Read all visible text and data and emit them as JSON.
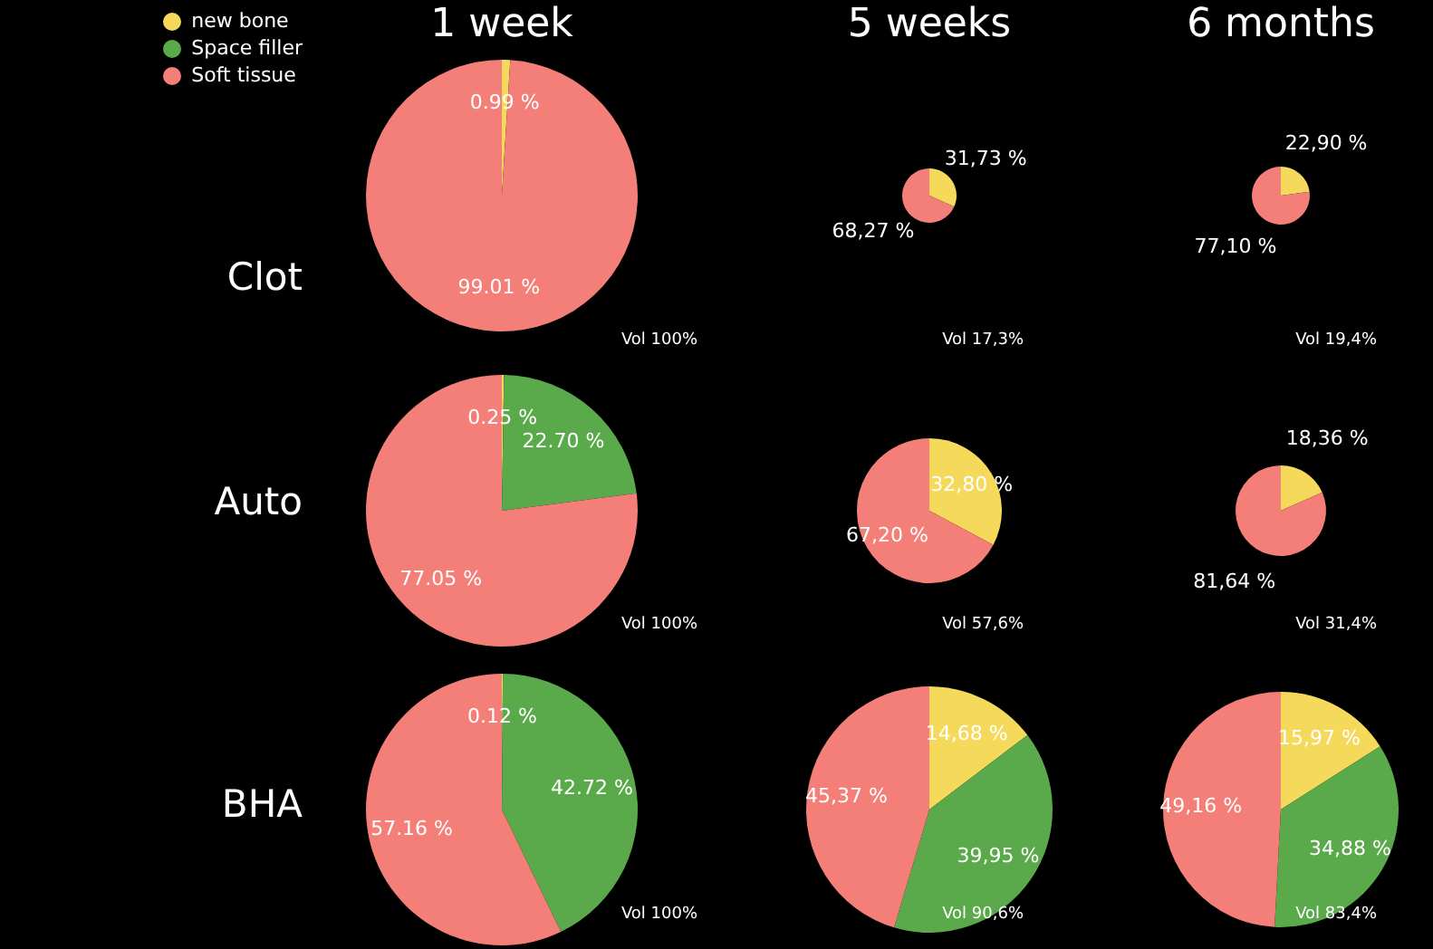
{
  "chart_data": [
    {
      "type": "pie",
      "title": "1 week",
      "ylabel": "Clot",
      "categories": [
        "new bone",
        "Space filler",
        "Soft tissue"
      ],
      "values": [
        0.99,
        0,
        99.01
      ],
      "colors": [
        "#f5d95a",
        "#5aaa4c",
        "#f47f79"
      ],
      "value_labels": [
        "0.99 %",
        null,
        "99.01 %"
      ],
      "legend": "top left",
      "annotations": [
        "Vol 100%"
      ]
    },
    {
      "type": "pie",
      "title": "5 weeks",
      "categories": [
        null,
        null
      ],
      "values": [
        31.73,
        68.27
      ],
      "colors": [
        "#f5d95a",
        "#f47f79"
      ],
      "value_labels": [
        "31,73 %",
        "68,27 %"
      ],
      "annotations": [
        "Vol 17,3%"
      ]
    },
    {
      "type": "pie",
      "title": "6 months",
      "categories": [
        null,
        null
      ],
      "values": [
        22.9,
        77.1
      ],
      "colors": [
        "#f5d95a",
        "#f47f79"
      ],
      "value_labels": [
        "22,90 %",
        "77,10 %"
      ],
      "annotations": [
        "Vol 19,4%"
      ]
    },
    {
      "type": "pie",
      "ylabel": "Auto",
      "categories": [
        null,
        null,
        null
      ],
      "values": [
        0.25,
        22.7,
        77.05
      ],
      "colors": [
        "#f5d95a",
        "#5aaa4c",
        "#f47f79"
      ],
      "value_labels": [
        "0.25 %",
        "22.70 %",
        "77.05 %"
      ],
      "annotations": [
        "Vol 100%"
      ]
    },
    {
      "type": "pie",
      "categories": [
        null,
        null
      ],
      "values": [
        32.8,
        67.2
      ],
      "colors": [
        "#f5d95a",
        "#f47f79"
      ],
      "value_labels": [
        "32,80 %",
        "67,20 %"
      ],
      "annotations": [
        "Vol 57,6%"
      ]
    },
    {
      "type": "pie",
      "categories": [
        null,
        null
      ],
      "values": [
        18.36,
        81.64
      ],
      "colors": [
        "#f5d95a",
        "#f47f79"
      ],
      "value_labels": [
        "18,36 %",
        "81,64 %"
      ],
      "annotations": [
        "Vol 31,4%"
      ]
    },
    {
      "type": "pie",
      "ylabel": "BHA",
      "categories": [
        null,
        null,
        null
      ],
      "values": [
        0.12,
        42.72,
        57.16
      ],
      "colors": [
        "#f5d95a",
        "#5aaa4c",
        "#f47f79"
      ],
      "value_labels": [
        "0.12 %",
        "42.72 %",
        "57.16 %"
      ],
      "annotations": [
        "Vol 100%"
      ]
    },
    {
      "type": "pie",
      "categories": [
        null,
        null,
        null
      ],
      "values": [
        14.68,
        39.95,
        45.37
      ],
      "colors": [
        "#f5d95a",
        "#5aaa4c",
        "#f47f79"
      ],
      "value_labels": [
        "14,68 %",
        "39,95 %",
        "45,37 %"
      ],
      "annotations": [
        "Vol 90,6%"
      ]
    },
    {
      "type": "pie",
      "categories": [
        null,
        null,
        null
      ],
      "values": [
        15.97,
        34.88,
        49.16
      ],
      "colors": [
        "#f5d95a",
        "#5aaa4c",
        "#f47f79"
      ],
      "value_labels": [
        "15,97 %",
        "34,88 %",
        "49,16 %"
      ],
      "annotations": [
        "Vol 83,4%"
      ]
    }
  ]
}
